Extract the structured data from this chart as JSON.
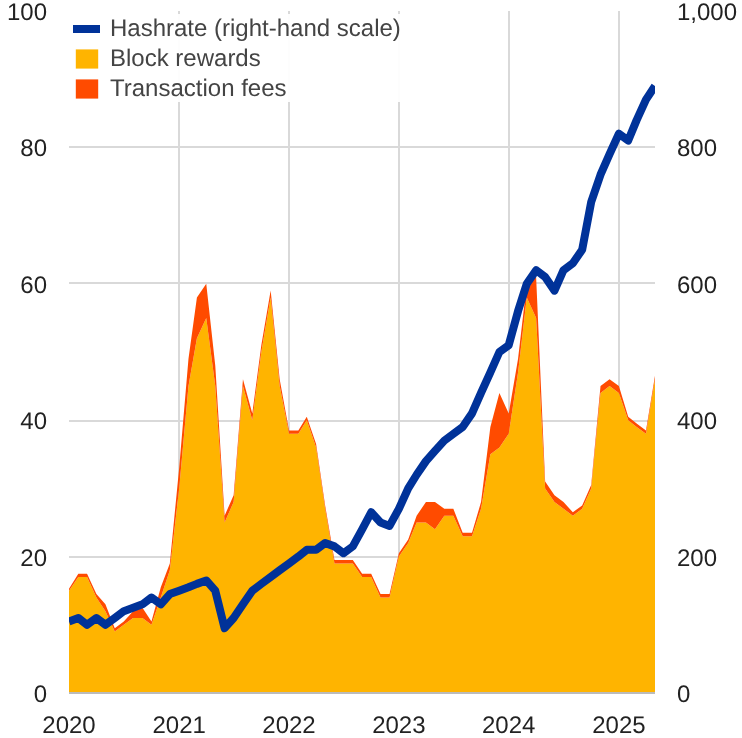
{
  "chart_data": {
    "type": "area",
    "stacked": true,
    "x": [
      "2020-01",
      "2020-02",
      "2020-03",
      "2020-04",
      "2020-05",
      "2020-06",
      "2020-07",
      "2020-08",
      "2020-09",
      "2020-10",
      "2020-11",
      "2020-12",
      "2021-01",
      "2021-02",
      "2021-03",
      "2021-04",
      "2021-05",
      "2021-06",
      "2021-07",
      "2021-08",
      "2021-09",
      "2021-10",
      "2021-11",
      "2021-12",
      "2022-01",
      "2022-02",
      "2022-03",
      "2022-04",
      "2022-05",
      "2022-06",
      "2022-07",
      "2022-08",
      "2022-09",
      "2022-10",
      "2022-11",
      "2022-12",
      "2023-01",
      "2023-02",
      "2023-03",
      "2023-04",
      "2023-05",
      "2023-06",
      "2023-07",
      "2023-08",
      "2023-09",
      "2023-10",
      "2023-11",
      "2023-12",
      "2024-01",
      "2024-02",
      "2024-03",
      "2024-04",
      "2024-05",
      "2024-06",
      "2024-07",
      "2024-08",
      "2024-09",
      "2024-10",
      "2024-11",
      "2024-12",
      "2025-01",
      "2025-02",
      "2025-03",
      "2025-04",
      "2025-05"
    ],
    "series": [
      {
        "name": "Hashrate (right-hand scale)",
        "type": "line",
        "axis": "y2",
        "color": "#003299",
        "values": [
          105,
          110,
          100,
          110,
          100,
          110,
          120,
          125,
          130,
          140,
          130,
          145,
          150,
          155,
          160,
          165,
          150,
          95,
          110,
          130,
          150,
          160,
          170,
          180,
          190,
          200,
          210,
          210,
          220,
          215,
          205,
          215,
          240,
          265,
          250,
          245,
          270,
          300,
          320,
          340,
          355,
          370,
          380,
          390,
          410,
          440,
          470,
          500,
          510,
          560,
          600,
          620,
          610,
          590,
          620,
          630,
          650,
          720,
          760,
          790,
          820,
          810,
          840,
          870,
          890
        ]
      },
      {
        "name": "Block rewards",
        "color": "#ffb400",
        "values": [
          15,
          17,
          17,
          14,
          12,
          9,
          10,
          11,
          11,
          10,
          14,
          18,
          30,
          45,
          52,
          55,
          45,
          25,
          28,
          45,
          40,
          50,
          58,
          45,
          38,
          38,
          40,
          36,
          27,
          19,
          19,
          19,
          17,
          17,
          14,
          14,
          20,
          22,
          25,
          25,
          24,
          26,
          26,
          23,
          23,
          27,
          35,
          36,
          38,
          47,
          58,
          55,
          30,
          28,
          27,
          26,
          27,
          30,
          44,
          45,
          44,
          40,
          39,
          38,
          46
        ]
      },
      {
        "name": "Transaction fees",
        "color": "#ff4b00",
        "values": [
          0.3,
          0.5,
          0.5,
          0.5,
          1,
          0.5,
          0.5,
          1,
          1.5,
          0.5,
          1.5,
          1,
          3,
          4,
          6,
          5,
          3,
          1,
          1,
          1,
          1,
          1,
          1,
          1,
          0.5,
          0.5,
          0.5,
          0.5,
          0.5,
          0.5,
          0.5,
          0.5,
          0.5,
          0.5,
          0.5,
          0.5,
          0.5,
          0.5,
          1,
          3,
          4,
          1,
          1,
          0.5,
          0.5,
          1,
          4,
          8,
          3,
          2,
          2,
          6,
          1,
          1,
          1,
          0.5,
          0.5,
          0.5,
          1,
          1,
          1,
          0.5,
          0.5,
          0.5,
          0.5
        ]
      }
    ],
    "xlim": [
      "2020-01",
      "2025-05"
    ],
    "xticks": [
      {
        "value": "2020-01",
        "label": "2020"
      },
      {
        "value": "2021-01",
        "label": "2021"
      },
      {
        "value": "2022-01",
        "label": "2022"
      },
      {
        "value": "2023-01",
        "label": "2023"
      },
      {
        "value": "2024-01",
        "label": "2024"
      },
      {
        "value": "2025-01",
        "label": "2025"
      }
    ],
    "ylim": [
      0,
      100
    ],
    "yticks": [
      0,
      20,
      40,
      60,
      80,
      100
    ],
    "y2lim": [
      0,
      1000
    ],
    "y2ticks": [
      0,
      200,
      400,
      600,
      800,
      {
        "value": 1000,
        "label": "1,000"
      }
    ],
    "grid": true,
    "legend": "top left"
  }
}
